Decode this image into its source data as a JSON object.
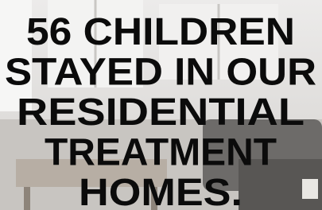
{
  "headline": {
    "lines": [
      "56 CHILDREN",
      "STAYED IN OUR",
      "RESIDENTIAL",
      "TREATMENT",
      "HOMES."
    ]
  }
}
